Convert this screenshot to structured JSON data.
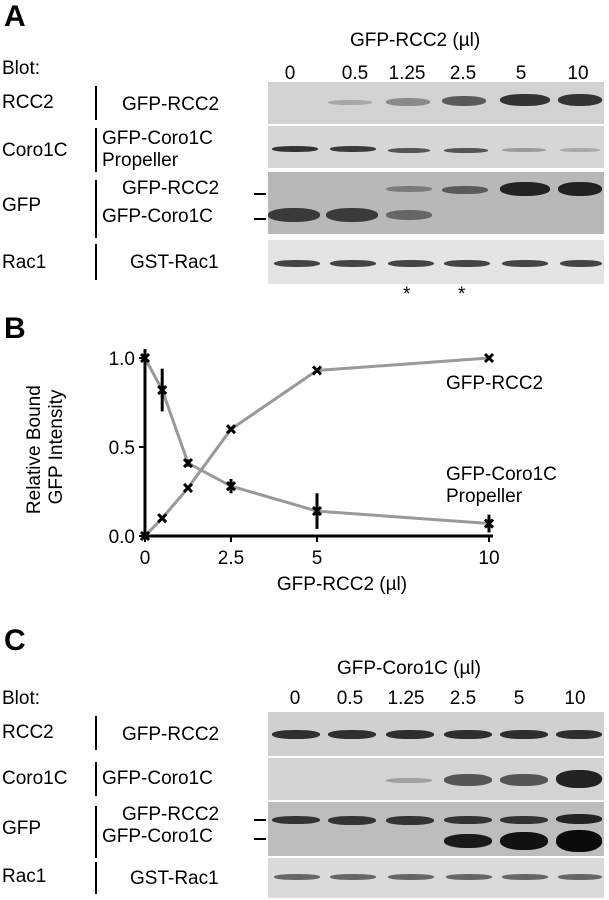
{
  "panel_a": {
    "letter": "A",
    "treatment_label": "GFP-RCC2 (µl)",
    "blot_label": "Blot:",
    "lanes": [
      "0",
      "0.5",
      "1.25",
      "2.5",
      "5",
      "10"
    ],
    "rows": [
      {
        "blot": "RCC2",
        "labels": [
          "GFP-RCC2"
        ]
      },
      {
        "blot": "Coro1C",
        "labels": [
          "GFP-Coro1C",
          "Propeller"
        ]
      },
      {
        "blot": "GFP",
        "labels": [
          "GFP-RCC2",
          "GFP-Coro1C"
        ]
      },
      {
        "blot": "Rac1",
        "labels": [
          "GST-Rac1"
        ]
      }
    ],
    "asterisks": [
      "*",
      "*"
    ]
  },
  "panel_b": {
    "letter": "B"
  },
  "chart_data": {
    "type": "line",
    "xlabel": "GFP-RCC2 (µl)",
    "ylabel": "Relative Bound GFP Intensity",
    "ylabel_lines": [
      "Relative Bound",
      "GFP Intensity"
    ],
    "xlim": [
      0,
      10
    ],
    "ylim": [
      0,
      1.0
    ],
    "xticks": [
      "0",
      "2.5",
      "5",
      "10"
    ],
    "yticks": [
      "0.0",
      "0.5",
      "1.0"
    ],
    "grid": false,
    "series": [
      {
        "name": "GFP-RCC2",
        "label_lines": [
          "GFP-RCC2"
        ],
        "x": [
          0,
          0.5,
          1.25,
          2.5,
          5,
          10
        ],
        "y": [
          0.0,
          0.1,
          0.27,
          0.6,
          0.93,
          1.0
        ],
        "err": [
          0.0,
          0.01,
          0.01,
          0.01,
          0.01,
          0.01
        ],
        "color": "#999999"
      },
      {
        "name": "GFP-Coro1C Propeller",
        "label_lines": [
          "GFP-Coro1C",
          "Propeller"
        ],
        "x": [
          0,
          0.5,
          1.25,
          2.5,
          5,
          10
        ],
        "y": [
          1.0,
          0.82,
          0.41,
          0.28,
          0.14,
          0.07
        ],
        "err": [
          0.05,
          0.12,
          0.02,
          0.04,
          0.1,
          0.05
        ],
        "color": "#999999"
      }
    ]
  },
  "panel_c": {
    "letter": "C",
    "treatment_label": "GFP-Coro1C (µl)",
    "blot_label": "Blot:",
    "lanes": [
      "0",
      "0.5",
      "1.25",
      "2.5",
      "5",
      "10"
    ],
    "rows": [
      {
        "blot": "RCC2",
        "labels": [
          "GFP-RCC2"
        ]
      },
      {
        "blot": "Coro1C",
        "labels": [
          "GFP-Coro1C"
        ]
      },
      {
        "blot": "GFP",
        "labels": [
          "GFP-RCC2",
          "GFP-Coro1C"
        ]
      },
      {
        "blot": "Rac1",
        "labels": [
          "GST-Rac1"
        ]
      }
    ]
  }
}
